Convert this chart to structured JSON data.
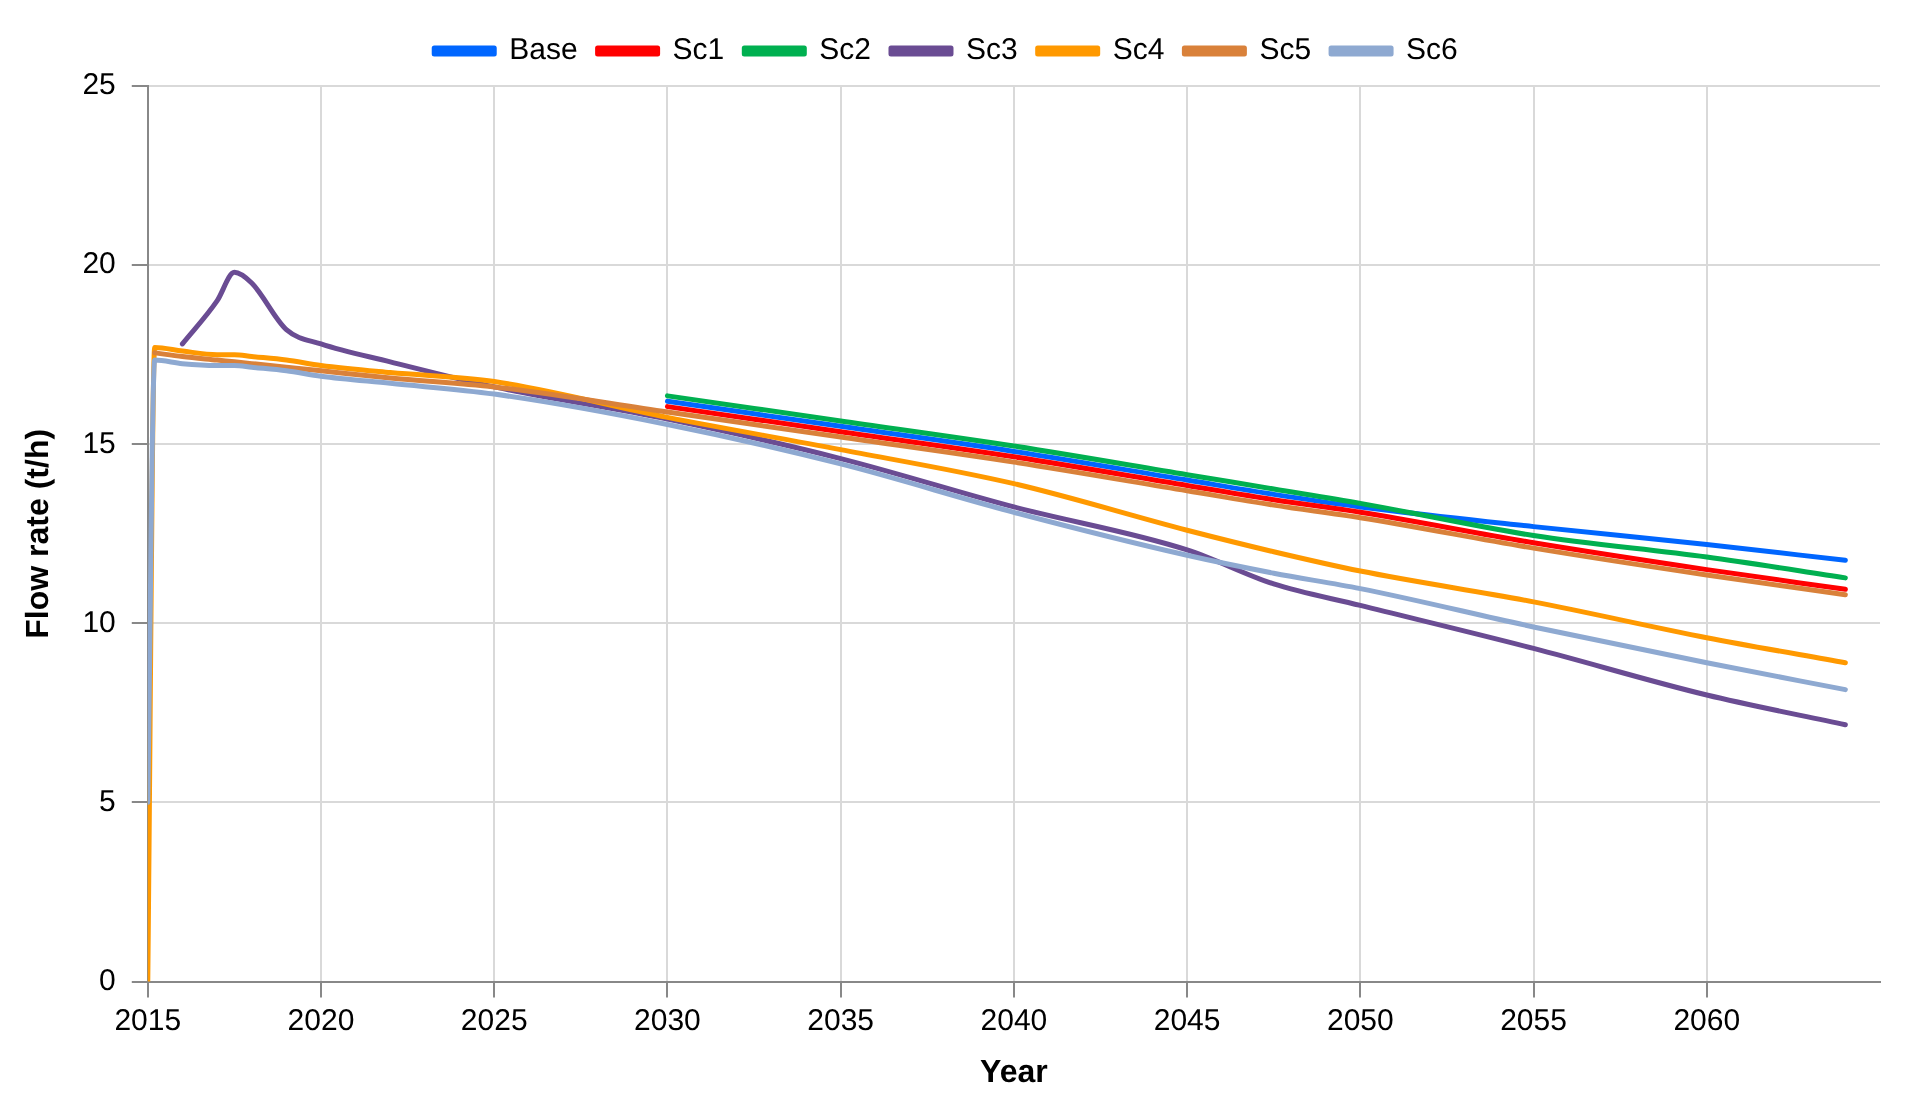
{
  "chart_data": {
    "type": "line",
    "xlabel": "Year",
    "ylabel": "Flow rate (t/h)",
    "x": [
      2015,
      2015.2,
      2016,
      2017,
      2017.5,
      2018,
      2019,
      2020,
      2022,
      2025,
      2030,
      2035,
      2040,
      2045,
      2047.5,
      2050,
      2055,
      2060,
      2064
    ],
    "series": [
      {
        "name": "Base",
        "color": "#0066ff",
        "values": [
          null,
          null,
          null,
          null,
          null,
          null,
          null,
          null,
          null,
          null,
          16.2,
          15.5,
          14.8,
          14.0,
          13.6,
          13.25,
          12.7,
          12.2,
          11.76
        ]
      },
      {
        "name": "Sc1",
        "color": "#ff0000",
        "values": [
          null,
          null,
          null,
          null,
          null,
          null,
          null,
          null,
          null,
          null,
          16.05,
          15.35,
          14.65,
          13.85,
          13.45,
          13.1,
          12.25,
          11.5,
          10.95
        ]
      },
      {
        "name": "Sc2",
        "color": "#00b050",
        "values": [
          null,
          null,
          null,
          null,
          null,
          null,
          null,
          null,
          null,
          null,
          16.35,
          15.65,
          14.95,
          14.15,
          13.75,
          13.35,
          12.45,
          11.85,
          11.27
        ]
      },
      {
        "name": "Sc3",
        "color": "#6a4c93",
        "values": [
          null,
          null,
          17.8,
          19.0,
          19.8,
          19.5,
          18.2,
          17.8,
          17.3,
          16.6,
          15.7,
          14.6,
          13.25,
          12.05,
          11.1,
          10.5,
          9.3,
          8.0,
          7.17
        ]
      },
      {
        "name": "Sc4",
        "color": "#ff9900",
        "values": [
          0,
          17.7,
          17.6,
          17.5,
          17.5,
          17.45,
          17.35,
          17.2,
          17.0,
          16.75,
          15.75,
          14.85,
          13.9,
          12.6,
          12.0,
          11.46,
          10.6,
          9.6,
          8.9
        ]
      },
      {
        "name": "Sc5",
        "color": "#d9813a",
        "values": [
          null,
          17.55,
          17.45,
          17.35,
          17.3,
          17.25,
          17.15,
          17.05,
          16.85,
          16.6,
          15.9,
          15.2,
          14.5,
          13.7,
          13.3,
          12.95,
          12.1,
          11.35,
          10.8
        ]
      },
      {
        "name": "Sc6",
        "color": "#8ea9d1",
        "values": [
          5,
          17.35,
          17.25,
          17.2,
          17.2,
          17.15,
          17.05,
          16.9,
          16.7,
          16.4,
          15.55,
          14.45,
          13.1,
          11.9,
          11.4,
          10.97,
          9.9,
          8.9,
          8.15
        ]
      }
    ],
    "xlim": [
      2015,
      2065
    ],
    "xticks": [
      2015,
      2020,
      2025,
      2030,
      2035,
      2040,
      2045,
      2050,
      2055,
      2060
    ],
    "ylim": [
      0,
      25
    ],
    "yticks": [
      0,
      5,
      10,
      15,
      20,
      25
    ],
    "grid": true,
    "legend": "top",
    "marker": "none",
    "line_style": "solid"
  }
}
